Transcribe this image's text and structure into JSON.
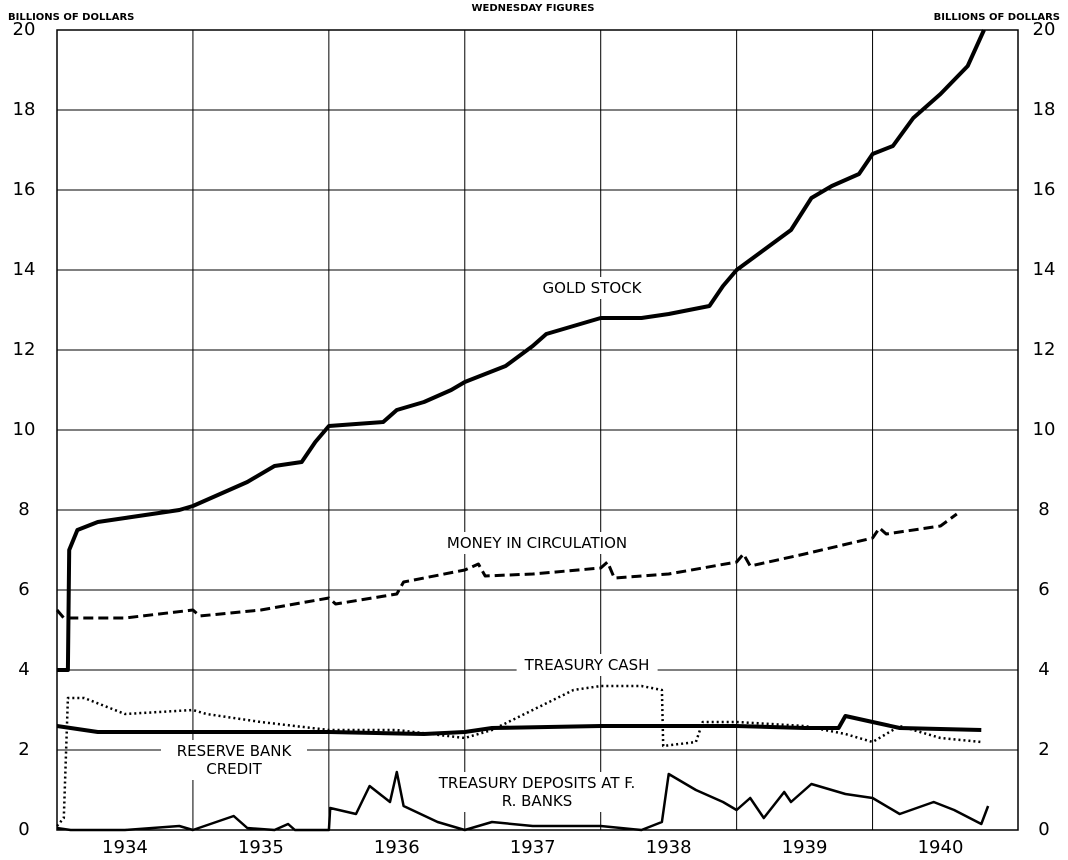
{
  "chart_data": {
    "type": "line",
    "title": "WEDNESDAY FIGURES",
    "ylabel": "BILLIONS OF DOLLARS",
    "y2label": "BILLIONS OF DOLLARS",
    "xlim": [
      1934,
      1941.07
    ],
    "xticks": [
      {
        "value": 1934.5,
        "label": "1934"
      },
      {
        "value": 1935.5,
        "label": "1935"
      },
      {
        "value": 1936.5,
        "label": "1936"
      },
      {
        "value": 1937.5,
        "label": "1937"
      },
      {
        "value": 1938.5,
        "label": "1938"
      },
      {
        "value": 1939.5,
        "label": "1939"
      },
      {
        "value": 1940.5,
        "label": "1940"
      }
    ],
    "xgrid": [
      1935,
      1936,
      1937,
      1938,
      1939,
      1940
    ],
    "ylim": [
      0,
      20
    ],
    "yticks": [
      0,
      2,
      4,
      6,
      8,
      10,
      12,
      14,
      16,
      18,
      20
    ],
    "grid": true,
    "series": [
      {
        "name": "GOLD STOCK",
        "color": "#000000",
        "style": "solid",
        "width": 4,
        "x": [
          1934.0,
          1934.08,
          1934.09,
          1934.15,
          1934.3,
          1934.5,
          1934.7,
          1934.9,
          1935.0,
          1935.2,
          1935.4,
          1935.6,
          1935.8,
          1935.9,
          1936.0,
          1936.2,
          1936.4,
          1936.5,
          1936.7,
          1936.9,
          1937.0,
          1937.3,
          1937.5,
          1937.6,
          1937.8,
          1938.0,
          1938.3,
          1938.5,
          1938.8,
          1938.9,
          1939.0,
          1939.2,
          1939.4,
          1939.55,
          1939.7,
          1939.9,
          1940.0,
          1940.15,
          1940.3,
          1940.5,
          1940.7,
          1940.82
        ],
        "values": [
          4.0,
          4.0,
          7.0,
          7.5,
          7.7,
          7.8,
          7.9,
          8.0,
          8.1,
          8.4,
          8.7,
          9.1,
          9.2,
          9.7,
          10.1,
          10.15,
          10.2,
          10.5,
          10.7,
          11.0,
          11.2,
          11.6,
          12.1,
          12.4,
          12.6,
          12.8,
          12.8,
          12.9,
          13.1,
          13.6,
          14.0,
          14.5,
          15.0,
          15.8,
          16.1,
          16.4,
          16.9,
          17.1,
          17.8,
          18.4,
          19.1,
          20.0
        ]
      },
      {
        "name": "MONEY IN CIRCULATION",
        "color": "#000000",
        "style": "dash",
        "width": 3,
        "x": [
          1934.0,
          1934.05,
          1934.5,
          1935.0,
          1935.05,
          1935.5,
          1936.0,
          1936.05,
          1936.5,
          1936.55,
          1937.0,
          1937.1,
          1937.15,
          1937.5,
          1938.0,
          1938.05,
          1938.1,
          1938.5,
          1939.0,
          1939.05,
          1939.1,
          1939.5,
          1940.0,
          1940.05,
          1940.1,
          1940.5,
          1940.62
        ],
        "values": [
          5.5,
          5.3,
          5.3,
          5.5,
          5.35,
          5.5,
          5.8,
          5.65,
          5.9,
          6.2,
          6.5,
          6.65,
          6.35,
          6.4,
          6.55,
          6.7,
          6.3,
          6.4,
          6.7,
          6.9,
          6.6,
          6.9,
          7.3,
          7.55,
          7.4,
          7.6,
          7.9
        ]
      },
      {
        "name": "TREASURY CASH",
        "color": "#000000",
        "style": "dot",
        "width": 2.5,
        "x": [
          1934.0,
          1934.05,
          1934.08,
          1934.2,
          1934.5,
          1935.0,
          1935.1,
          1935.5,
          1936.0,
          1936.5,
          1937.0,
          1937.2,
          1937.5,
          1937.8,
          1938.0,
          1938.3,
          1938.45,
          1938.46,
          1938.7,
          1938.75,
          1939.0,
          1939.5,
          1939.8,
          1940.0,
          1940.2,
          1940.5,
          1940.8
        ],
        "values": [
          0.1,
          0.3,
          3.3,
          3.3,
          2.9,
          3.0,
          2.9,
          2.7,
          2.5,
          2.5,
          2.3,
          2.5,
          3.0,
          3.5,
          3.6,
          3.6,
          3.5,
          2.1,
          2.2,
          2.7,
          2.7,
          2.6,
          2.4,
          2.2,
          2.6,
          2.3,
          2.2
        ]
      },
      {
        "name": "RESERVE BANK CREDIT",
        "color": "#000000",
        "style": "solid",
        "width": 4,
        "x": [
          1934.0,
          1934.3,
          1935.0,
          1936.0,
          1936.7,
          1937.0,
          1937.2,
          1938.0,
          1938.5,
          1939.0,
          1939.5,
          1939.75,
          1939.8,
          1940.0,
          1940.2,
          1940.8
        ],
        "values": [
          2.6,
          2.45,
          2.45,
          2.45,
          2.4,
          2.45,
          2.55,
          2.6,
          2.6,
          2.6,
          2.55,
          2.55,
          2.85,
          2.7,
          2.55,
          2.5
        ]
      },
      {
        "name": "TREASURY DEPOSITS AT F. R. BANKS",
        "color": "#000000",
        "style": "solid",
        "width": 2.5,
        "x": [
          1934.0,
          1934.1,
          1934.5,
          1934.9,
          1935.0,
          1935.3,
          1935.4,
          1935.6,
          1935.7,
          1935.75,
          1936.0,
          1936.01,
          1936.2,
          1936.3,
          1936.45,
          1936.5,
          1936.55,
          1936.8,
          1937.0,
          1937.2,
          1937.5,
          1937.8,
          1938.0,
          1938.3,
          1938.45,
          1938.5,
          1938.7,
          1938.9,
          1939.0,
          1939.1,
          1939.2,
          1939.35,
          1939.4,
          1939.55,
          1939.8,
          1940.0,
          1940.2,
          1940.45,
          1940.6,
          1940.8,
          1940.85
        ],
        "values": [
          0.05,
          0.0,
          0.0,
          0.1,
          0.0,
          0.35,
          0.05,
          0.0,
          0.15,
          0.0,
          0.0,
          0.55,
          0.4,
          1.1,
          0.7,
          1.45,
          0.6,
          0.2,
          0.0,
          0.2,
          0.1,
          0.1,
          0.1,
          0.0,
          0.2,
          1.4,
          1.0,
          0.7,
          0.5,
          0.8,
          0.3,
          0.95,
          0.7,
          1.15,
          0.9,
          0.8,
          0.4,
          0.7,
          0.5,
          0.15,
          0.6
        ]
      }
    ]
  }
}
